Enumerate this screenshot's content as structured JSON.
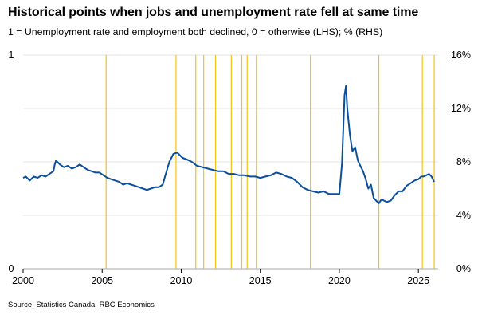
{
  "title": "Historical points when jobs and unemployment rate fell at same time",
  "subtitle": "1 = Unemployment rate and employment both declined, 0 = otherwise (LHS); % (RHS)",
  "source": "Source: Statistics Canada, RBC Economics",
  "colors": {
    "series": "#0b4f9c",
    "bars": "#f2c21b",
    "grid": "#e6e6e6",
    "axis": "#aaaaaa"
  },
  "chart_data": {
    "type": "line",
    "title": "Historical points when jobs and unemployment rate fell at same time",
    "subtitle": "1 = Unemployment rate and employment both declined, 0 = otherwise (LHS); % (RHS)",
    "xlim": [
      2000,
      2026.25
    ],
    "x_ticks": [
      2000,
      2005,
      2010,
      2015,
      2020,
      2025
    ],
    "x_tick_labels": [
      "2000",
      "2005",
      "2010",
      "2015",
      "2020",
      "2025"
    ],
    "left_axis": {
      "ylim": [
        0,
        1
      ],
      "ticks": [
        0,
        1
      ],
      "tick_labels": [
        "0",
        "1"
      ]
    },
    "right_axis": {
      "ylim": [
        0,
        16
      ],
      "ticks": [
        0,
        4,
        8,
        12,
        16
      ],
      "tick_labels": [
        "0%",
        "4%",
        "8%",
        "12%",
        "16%"
      ]
    },
    "grid": true,
    "series": [
      {
        "type": "bar",
        "axis": "left",
        "description": "Both declined indicator",
        "x": [
          2005.25,
          2009.67,
          2010.92,
          2011.42,
          2012.17,
          2013.17,
          2013.83,
          2014.17,
          2014.75,
          2018.17,
          2022.5,
          2025.25,
          2026.0
        ],
        "values": [
          1,
          1,
          1,
          1,
          1,
          1,
          1,
          1,
          1,
          1,
          1,
          1,
          1
        ]
      },
      {
        "type": "line",
        "axis": "right",
        "description": "Unemployment rate",
        "points": [
          [
            2000.0,
            6.8
          ],
          [
            2000.17,
            6.9
          ],
          [
            2000.42,
            6.6
          ],
          [
            2000.67,
            6.9
          ],
          [
            2000.92,
            6.8
          ],
          [
            2001.17,
            7.0
          ],
          [
            2001.42,
            6.9
          ],
          [
            2001.67,
            7.1
          ],
          [
            2001.92,
            7.3
          ],
          [
            2002.0,
            7.8
          ],
          [
            2002.08,
            8.1
          ],
          [
            2002.33,
            7.8
          ],
          [
            2002.58,
            7.6
          ],
          [
            2002.83,
            7.7
          ],
          [
            2003.08,
            7.5
          ],
          [
            2003.33,
            7.6
          ],
          [
            2003.58,
            7.8
          ],
          [
            2003.83,
            7.6
          ],
          [
            2004.08,
            7.4
          ],
          [
            2004.33,
            7.3
          ],
          [
            2004.58,
            7.2
          ],
          [
            2004.83,
            7.2
          ],
          [
            2005.08,
            7.0
          ],
          [
            2005.33,
            6.8
          ],
          [
            2005.58,
            6.7
          ],
          [
            2005.83,
            6.6
          ],
          [
            2006.08,
            6.5
          ],
          [
            2006.33,
            6.3
          ],
          [
            2006.58,
            6.4
          ],
          [
            2006.83,
            6.3
          ],
          [
            2007.08,
            6.2
          ],
          [
            2007.33,
            6.1
          ],
          [
            2007.58,
            6.0
          ],
          [
            2007.83,
            5.9
          ],
          [
            2008.08,
            6.0
          ],
          [
            2008.33,
            6.1
          ],
          [
            2008.58,
            6.1
          ],
          [
            2008.83,
            6.3
          ],
          [
            2009.0,
            7.0
          ],
          [
            2009.25,
            8.0
          ],
          [
            2009.5,
            8.6
          ],
          [
            2009.75,
            8.7
          ],
          [
            2010.08,
            8.3
          ],
          [
            2010.33,
            8.2
          ],
          [
            2010.67,
            8.0
          ],
          [
            2011.0,
            7.7
          ],
          [
            2011.33,
            7.6
          ],
          [
            2011.67,
            7.5
          ],
          [
            2012.0,
            7.4
          ],
          [
            2012.33,
            7.3
          ],
          [
            2012.67,
            7.3
          ],
          [
            2013.0,
            7.1
          ],
          [
            2013.33,
            7.1
          ],
          [
            2013.67,
            7.0
          ],
          [
            2014.0,
            7.0
          ],
          [
            2014.33,
            6.9
          ],
          [
            2014.67,
            6.9
          ],
          [
            2015.0,
            6.8
          ],
          [
            2015.33,
            6.9
          ],
          [
            2015.67,
            7.0
          ],
          [
            2016.0,
            7.2
          ],
          [
            2016.33,
            7.1
          ],
          [
            2016.67,
            6.9
          ],
          [
            2017.0,
            6.8
          ],
          [
            2017.33,
            6.5
          ],
          [
            2017.67,
            6.1
          ],
          [
            2018.0,
            5.9
          ],
          [
            2018.33,
            5.8
          ],
          [
            2018.67,
            5.7
          ],
          [
            2019.0,
            5.8
          ],
          [
            2019.33,
            5.6
          ],
          [
            2019.67,
            5.6
          ],
          [
            2020.0,
            5.6
          ],
          [
            2020.17,
            7.9
          ],
          [
            2020.33,
            13.0
          ],
          [
            2020.42,
            13.7
          ],
          [
            2020.5,
            12.0
          ],
          [
            2020.67,
            10.0
          ],
          [
            2020.83,
            8.8
          ],
          [
            2021.0,
            9.1
          ],
          [
            2021.17,
            8.1
          ],
          [
            2021.33,
            7.7
          ],
          [
            2021.5,
            7.3
          ],
          [
            2021.67,
            6.7
          ],
          [
            2021.83,
            6.0
          ],
          [
            2022.0,
            6.3
          ],
          [
            2022.17,
            5.3
          ],
          [
            2022.33,
            5.1
          ],
          [
            2022.5,
            4.9
          ],
          [
            2022.67,
            5.2
          ],
          [
            2022.83,
            5.1
          ],
          [
            2023.0,
            5.0
          ],
          [
            2023.25,
            5.1
          ],
          [
            2023.5,
            5.5
          ],
          [
            2023.75,
            5.8
          ],
          [
            2024.0,
            5.8
          ],
          [
            2024.25,
            6.2
          ],
          [
            2024.5,
            6.4
          ],
          [
            2024.75,
            6.6
          ],
          [
            2025.0,
            6.7
          ],
          [
            2025.17,
            6.9
          ],
          [
            2025.33,
            6.9
          ],
          [
            2025.5,
            7.0
          ],
          [
            2025.67,
            7.1
          ],
          [
            2025.83,
            6.9
          ],
          [
            2026.0,
            6.5
          ]
        ]
      }
    ]
  }
}
